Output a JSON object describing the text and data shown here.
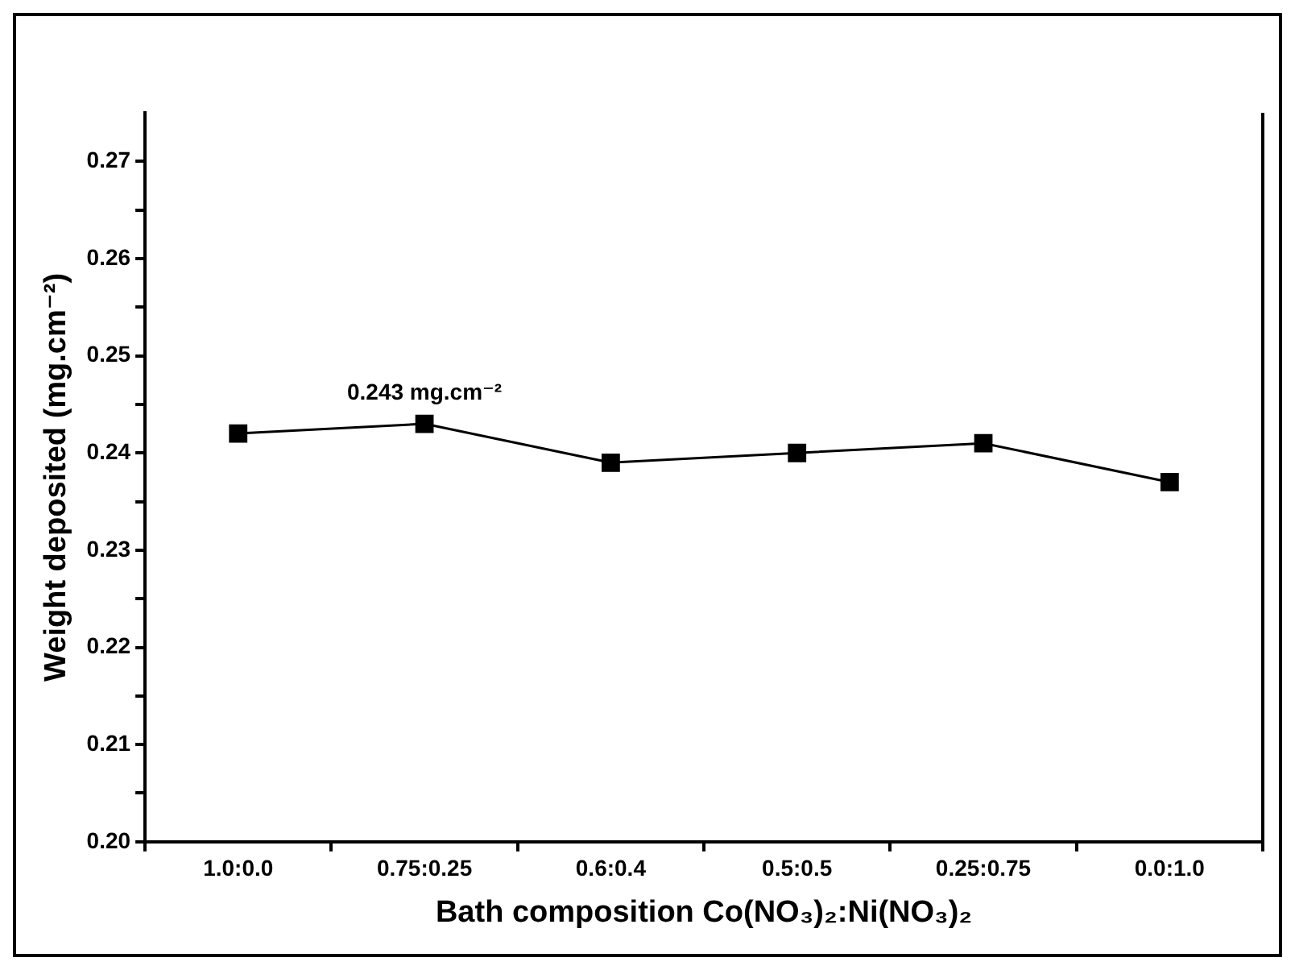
{
  "chart_data": {
    "type": "line",
    "xlabel": "Bath composition Co(NO₃)₂:Ni(NO₃)₂",
    "ylabel": "Weight deposited (mg.cm⁻²)",
    "categories": [
      "1.0:0.0",
      "0.75:0.25",
      "0.6:0.4",
      "0.5:0.5",
      "0.25:0.75",
      "0.0:1.0"
    ],
    "series": [
      {
        "color": "#000000",
        "values": [
          0.242,
          0.243,
          0.239,
          0.24,
          0.241,
          0.237
        ]
      }
    ],
    "ylim": [
      0.2,
      0.275
    ],
    "yticks": [
      {
        "value": 0.2,
        "label": "0.20"
      },
      {
        "value": 0.205,
        "label": null
      },
      {
        "value": 0.21,
        "label": "0.21"
      },
      {
        "value": 0.215,
        "label": null
      },
      {
        "value": 0.22,
        "label": "0.22"
      },
      {
        "value": 0.225,
        "label": null
      },
      {
        "value": 0.23,
        "label": "0.23"
      },
      {
        "value": 0.235,
        "label": null
      },
      {
        "value": 0.24,
        "label": "0.24"
      },
      {
        "value": 0.245,
        "label": null
      },
      {
        "value": 0.25,
        "label": "0.25"
      },
      {
        "value": 0.255,
        "label": null
      },
      {
        "value": 0.26,
        "label": "0.26"
      },
      {
        "value": 0.265,
        "label": null
      },
      {
        "value": 0.27,
        "label": "0.27"
      }
    ],
    "annotations": [
      {
        "text": "0.243 mg.cm⁻²",
        "x": "0.75:0.25",
        "y": 0.243
      }
    ],
    "marker": "square",
    "line_style": "solid",
    "grid": false,
    "legend": false
  }
}
